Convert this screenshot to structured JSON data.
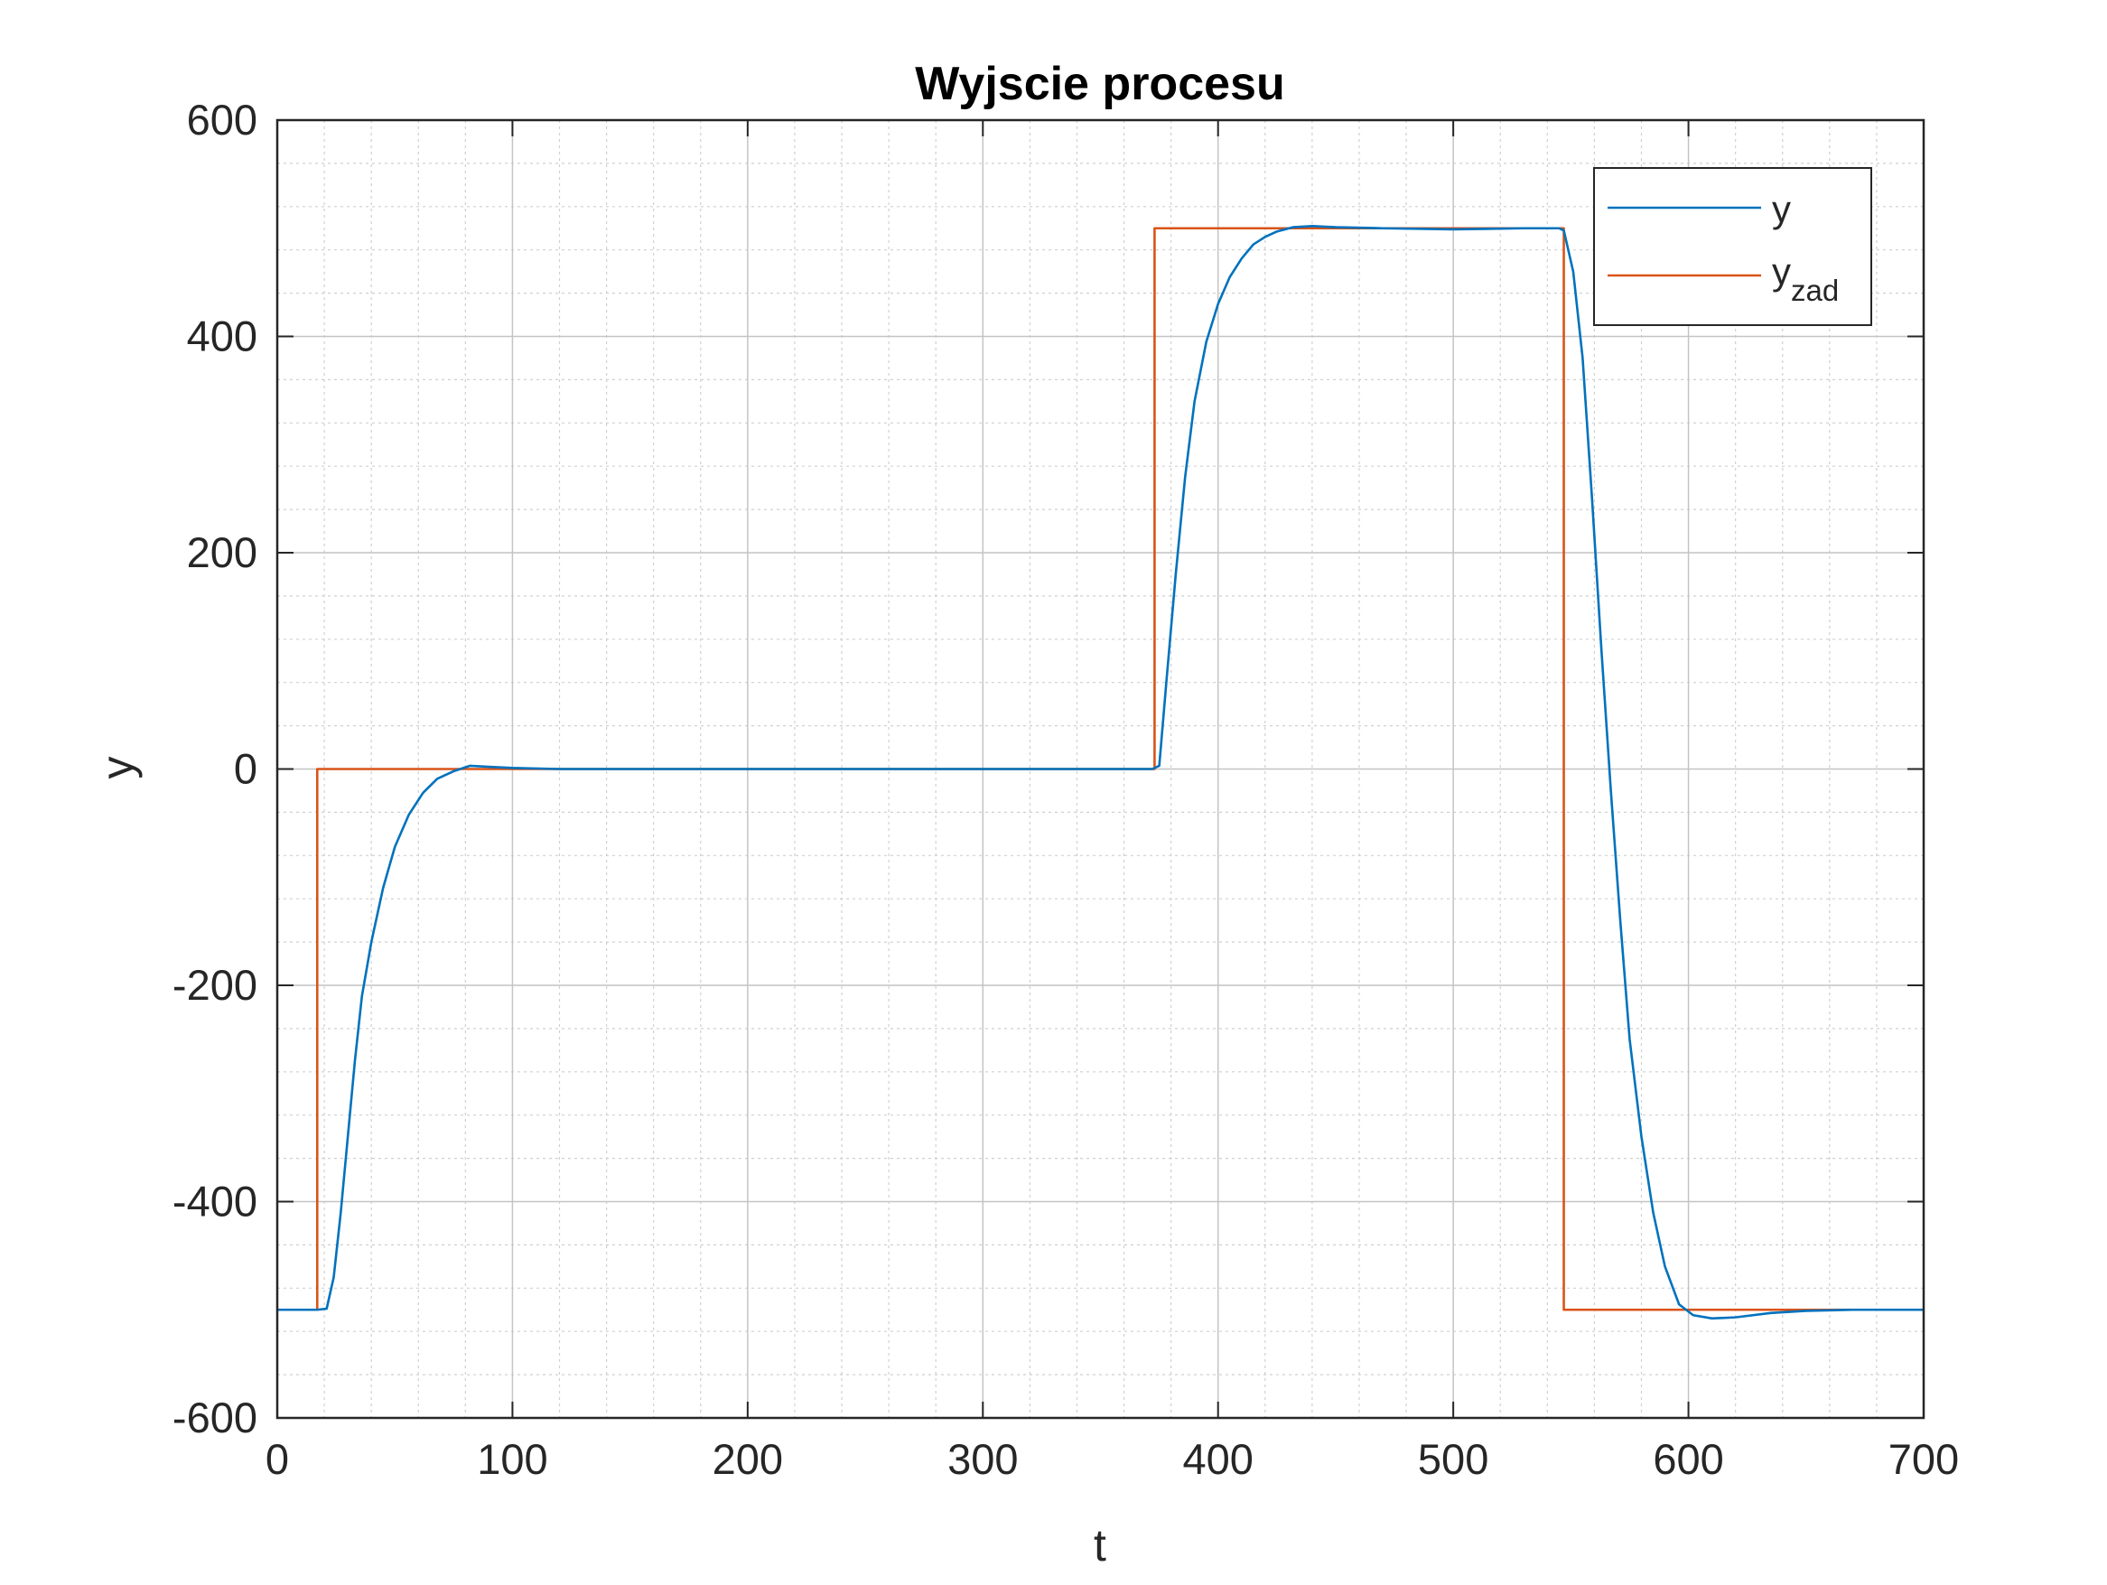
{
  "chart_data": {
    "type": "line",
    "title": "Wyjscie procesu",
    "xlabel": "t",
    "ylabel": "y",
    "xlim": [
      0,
      700
    ],
    "ylim": [
      -600,
      600
    ],
    "xticks": [
      0,
      100,
      200,
      300,
      400,
      500,
      600,
      700
    ],
    "yticks": [
      -600,
      -400,
      -200,
      0,
      200,
      400,
      600
    ],
    "grid": true,
    "minor_grid": true,
    "legend_position": "top-right",
    "series": [
      {
        "name": "y",
        "color": "#0072BD",
        "points": [
          [
            0,
            -500
          ],
          [
            17,
            -500
          ],
          [
            21,
            -499
          ],
          [
            24,
            -470
          ],
          [
            27,
            -410
          ],
          [
            30,
            -340
          ],
          [
            33,
            -270
          ],
          [
            36,
            -210
          ],
          [
            40,
            -160
          ],
          [
            45,
            -110
          ],
          [
            50,
            -72
          ],
          [
            56,
            -42
          ],
          [
            62,
            -22
          ],
          [
            68,
            -9
          ],
          [
            75,
            -2
          ],
          [
            82,
            3
          ],
          [
            90,
            2
          ],
          [
            100,
            1
          ],
          [
            120,
            0
          ],
          [
            150,
            0
          ],
          [
            200,
            0
          ],
          [
            250,
            0
          ],
          [
            300,
            0
          ],
          [
            350,
            0
          ],
          [
            372,
            0
          ],
          [
            375,
            3
          ],
          [
            378,
            80
          ],
          [
            382,
            180
          ],
          [
            386,
            270
          ],
          [
            390,
            340
          ],
          [
            395,
            395
          ],
          [
            400,
            430
          ],
          [
            405,
            455
          ],
          [
            410,
            472
          ],
          [
            415,
            485
          ],
          [
            420,
            492
          ],
          [
            425,
            497
          ],
          [
            432,
            501
          ],
          [
            440,
            502
          ],
          [
            450,
            501
          ],
          [
            470,
            500
          ],
          [
            500,
            499
          ],
          [
            530,
            500
          ],
          [
            545,
            500
          ],
          [
            547,
            498
          ],
          [
            551,
            460
          ],
          [
            555,
            380
          ],
          [
            559,
            250
          ],
          [
            563,
            110
          ],
          [
            567,
            -20
          ],
          [
            571,
            -140
          ],
          [
            575,
            -250
          ],
          [
            580,
            -340
          ],
          [
            585,
            -410
          ],
          [
            590,
            -460
          ],
          [
            596,
            -495
          ],
          [
            602,
            -505
          ],
          [
            610,
            -508
          ],
          [
            620,
            -507
          ],
          [
            635,
            -503
          ],
          [
            650,
            -501
          ],
          [
            670,
            -500
          ],
          [
            700,
            -500
          ]
        ]
      },
      {
        "name": "y",
        "name_subscript": "zad",
        "color": "#D95319",
        "points": [
          [
            0,
            -500
          ],
          [
            17,
            -500
          ],
          [
            17,
            0
          ],
          [
            373,
            0
          ],
          [
            373,
            500
          ],
          [
            547,
            500
          ],
          [
            547,
            -500
          ],
          [
            700,
            -500
          ]
        ]
      }
    ]
  }
}
